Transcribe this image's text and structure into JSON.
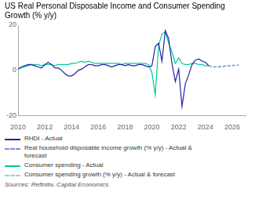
{
  "chart_data": {
    "type": "line",
    "title": "US Real Personal Disposable Income and Consumer Spending\nGrowth (% y/y)",
    "annotations": [
      "Sources: Refinitiv, Capital Economics"
    ],
    "xlim": [
      2010,
      2027
    ],
    "ylim": [
      -20,
      20
    ],
    "xticks": [
      2010,
      2012,
      2014,
      2016,
      2018,
      2020,
      2022,
      2024,
      2026
    ],
    "yticks": [
      -20,
      0,
      20
    ],
    "grid": false,
    "series": [
      {
        "name": "RHDI - Actual",
        "color": "#2222aa",
        "line_style": "solid",
        "x": [
          2010.0,
          2010.25,
          2010.5,
          2010.75,
          2011.0,
          2011.25,
          2011.5,
          2011.75,
          2012.0,
          2012.25,
          2012.5,
          2012.75,
          2013.0,
          2013.25,
          2013.5,
          2013.75,
          2014.0,
          2014.25,
          2014.5,
          2014.75,
          2015.0,
          2015.25,
          2015.5,
          2015.75,
          2016.0,
          2016.25,
          2016.5,
          2016.75,
          2017.0,
          2017.25,
          2017.5,
          2017.75,
          2018.0,
          2018.25,
          2018.5,
          2018.75,
          2019.0,
          2019.25,
          2019.5,
          2019.75,
          2020.0,
          2020.25,
          2020.5,
          2020.75,
          2021.0,
          2021.25,
          2021.5,
          2021.75,
          2022.0,
          2022.25,
          2022.5,
          2022.75,
          2023.0,
          2023.25,
          2023.5,
          2023.75,
          2024.0,
          2024.25
        ],
        "values": [
          0.5,
          1.5,
          2.0,
          2.5,
          2.5,
          2.0,
          1.5,
          1.0,
          2.5,
          3.5,
          2.5,
          1.0,
          1.0,
          0.0,
          -1.5,
          -2.5,
          -2.5,
          -1.5,
          0.0,
          0.5,
          1.5,
          2.5,
          2.5,
          2.0,
          2.0,
          2.5,
          2.5,
          2.0,
          1.5,
          2.0,
          2.5,
          2.5,
          2.0,
          2.5,
          2.0,
          2.0,
          2.5,
          2.5,
          2.0,
          1.5,
          2.0,
          10.5,
          12.0,
          4.0,
          17.5,
          14.0,
          3.0,
          -5.0,
          0.5,
          -16.0,
          -6.0,
          -2.0,
          2.5,
          4.5,
          5.0,
          4.0,
          3.5,
          2.0
        ]
      },
      {
        "name": "Real household disposable income growth (% y/y) - Actual &\nforecast",
        "color": "#8888cc",
        "line_style": "dashed",
        "x": [
          2024.25,
          2024.5,
          2024.75,
          2025.0,
          2025.25,
          2025.5,
          2025.75,
          2026.0,
          2026.25,
          2026.5
        ],
        "values": [
          2.0,
          1.5,
          1.5,
          1.5,
          1.5,
          1.8,
          2.0,
          2.0,
          2.2,
          2.2
        ]
      },
      {
        "name": "Consumer spending - Actual",
        "color": "#00cc99",
        "line_style": "solid",
        "x": [
          2010.0,
          2010.25,
          2010.5,
          2010.75,
          2011.0,
          2011.25,
          2011.5,
          2011.75,
          2012.0,
          2012.25,
          2012.5,
          2012.75,
          2013.0,
          2013.25,
          2013.5,
          2013.75,
          2014.0,
          2014.25,
          2014.5,
          2014.75,
          2015.0,
          2015.25,
          2015.5,
          2015.75,
          2016.0,
          2016.25,
          2016.5,
          2016.75,
          2017.0,
          2017.25,
          2017.5,
          2017.75,
          2018.0,
          2018.25,
          2018.5,
          2018.75,
          2019.0,
          2019.25,
          2019.5,
          2019.75,
          2020.0,
          2020.25,
          2020.5,
          2020.75,
          2021.0,
          2021.25,
          2021.5,
          2021.75,
          2022.0,
          2022.25,
          2022.5,
          2022.75,
          2023.0,
          2023.25,
          2023.5,
          2023.75,
          2024.0,
          2024.25
        ],
        "values": [
          0.5,
          1.0,
          1.5,
          2.0,
          2.5,
          2.5,
          2.5,
          2.0,
          2.5,
          2.5,
          2.5,
          2.0,
          2.5,
          2.5,
          2.5,
          2.5,
          3.0,
          3.0,
          3.5,
          4.0,
          3.5,
          4.0,
          3.5,
          3.0,
          3.0,
          3.0,
          3.0,
          3.0,
          3.0,
          3.0,
          3.0,
          2.5,
          3.0,
          3.0,
          3.0,
          3.0,
          3.0,
          3.0,
          3.0,
          2.5,
          -1.0,
          -11.0,
          11.0,
          16.0,
          17.0,
          12.0,
          8.0,
          3.0,
          5.5,
          3.0,
          2.5,
          2.5,
          3.0,
          3.0,
          2.5,
          2.5,
          2.0,
          2.0
        ]
      },
      {
        "name": "Consumer spending growth (% y/y) - Actual & forecast",
        "color": "#88ddcc",
        "line_style": "dashed",
        "x": [
          2024.25,
          2024.5,
          2024.75,
          2025.0,
          2025.25,
          2025.5,
          2025.75,
          2026.0,
          2026.25,
          2026.5
        ],
        "values": [
          2.0,
          1.5,
          1.5,
          1.8,
          2.0,
          2.0,
          2.0,
          2.2,
          2.2,
          2.5
        ]
      }
    ]
  }
}
